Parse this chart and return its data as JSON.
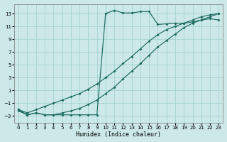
{
  "xlabel": "Humidex (Indice chaleur)",
  "bg_color": "#cce8e8",
  "grid_color": "#aad4d4",
  "line_color": "#1a6b60",
  "xlim": [
    -0.5,
    23.5
  ],
  "ylim": [
    -4.0,
    14.5
  ],
  "xticks": [
    0,
    1,
    2,
    3,
    4,
    5,
    6,
    7,
    8,
    9,
    10,
    11,
    12,
    13,
    14,
    15,
    16,
    17,
    18,
    19,
    20,
    21,
    22,
    23
  ],
  "yticks": [
    -3,
    -1,
    1,
    3,
    5,
    7,
    9,
    11,
    13
  ],
  "line1_x": [
    0,
    1,
    2,
    3,
    4,
    5,
    6,
    7,
    8,
    9,
    10,
    11,
    12,
    13,
    14,
    15,
    16,
    17,
    18,
    19,
    20,
    21,
    22,
    23
  ],
  "line1_y": [
    -2.0,
    -2.8,
    -2.5,
    -2.8,
    -2.8,
    -2.8,
    -2.8,
    -2.8,
    -2.8,
    -2.8,
    13.0,
    13.5,
    13.1,
    13.1,
    13.3,
    13.3,
    11.3,
    11.4,
    11.5,
    11.5,
    11.7,
    12.0,
    12.2,
    12.0
  ],
  "line2_x": [
    0,
    1,
    2,
    3,
    4,
    5,
    6,
    7,
    8,
    9,
    10,
    11,
    12,
    13,
    14,
    15,
    16,
    17,
    18,
    19,
    20,
    21,
    22,
    23
  ],
  "line2_y": [
    -2.0,
    -2.5,
    -2.0,
    -1.5,
    -1.0,
    -0.5,
    0.0,
    0.5,
    1.2,
    2.0,
    3.0,
    4.0,
    5.2,
    6.3,
    7.5,
    8.7,
    9.7,
    10.5,
    11.0,
    11.5,
    12.0,
    12.5,
    12.8,
    13.0
  ],
  "line3_x": [
    0,
    1,
    2,
    3,
    4,
    5,
    6,
    7,
    8,
    9,
    10,
    11,
    12,
    13,
    14,
    15,
    16,
    17,
    18,
    19,
    20,
    21,
    22,
    23
  ],
  "line3_y": [
    -2.2,
    -2.8,
    -2.5,
    -2.8,
    -2.8,
    -2.5,
    -2.2,
    -1.8,
    -1.2,
    -0.5,
    0.5,
    1.5,
    2.8,
    4.0,
    5.2,
    6.5,
    7.8,
    8.8,
    9.8,
    10.8,
    11.5,
    12.0,
    12.5,
    13.0
  ]
}
